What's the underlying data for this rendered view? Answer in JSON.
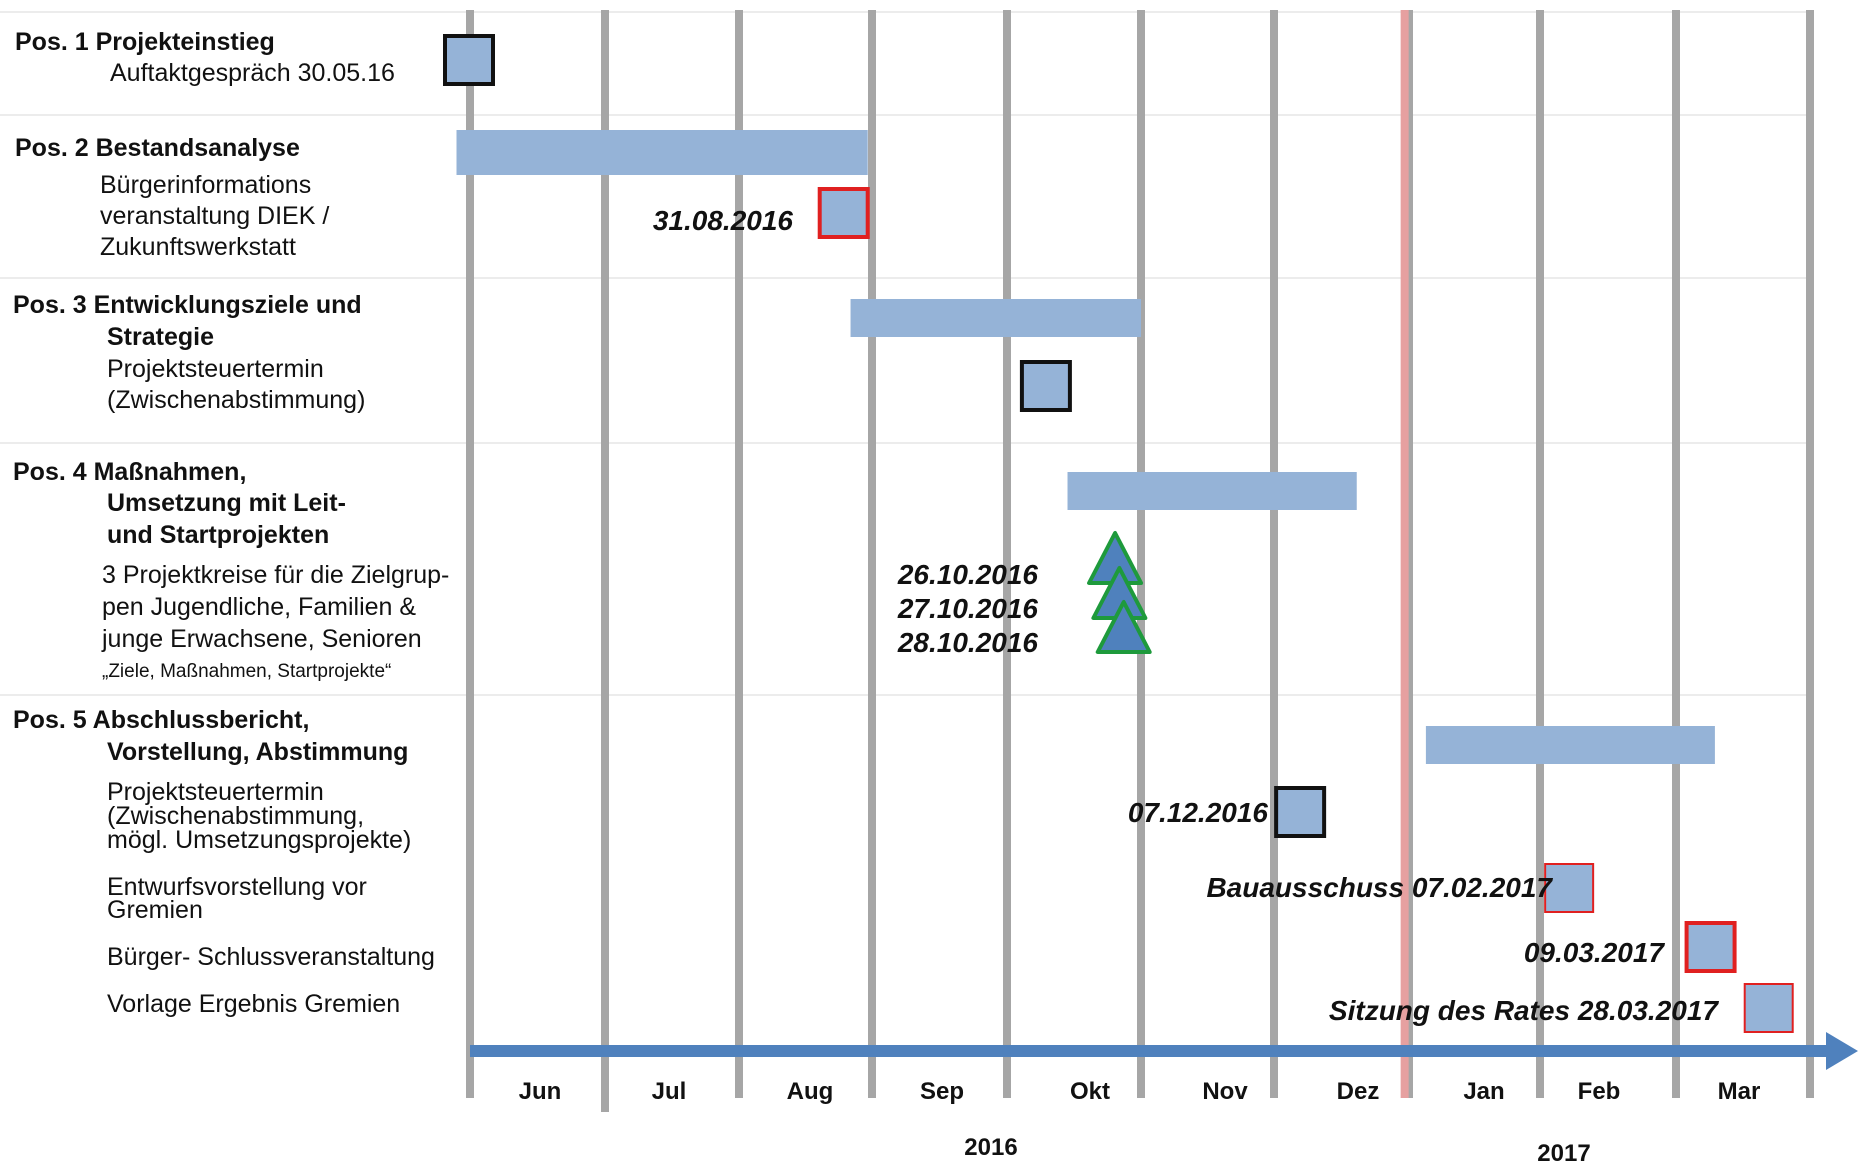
{
  "rows": [
    {
      "title": "Pos. 1 Projekteinstieg",
      "title_lines": [
        "Pos. 1 Projekteinstieg"
      ],
      "sub_lines": [
        "Auftaktgespräch 30.05.16"
      ]
    },
    {
      "title_lines": [
        "Pos. 2 Bestandsanalyse"
      ],
      "sub_lines": [
        "Bürgerinformations",
        "veranstaltung DIEK /",
        "Zukunftswerkstatt"
      ]
    },
    {
      "title_lines": [
        "Pos. 3  Entwicklungsziele und",
        "Strategie"
      ],
      "sub_lines": [
        "Projektsteuertermin",
        "(Zwischenabstimmung)"
      ]
    },
    {
      "title_lines": [
        "Pos. 4  Maßnahmen,",
        "Umsetzung mit Leit-",
        "und Startprojekten"
      ],
      "sub_lines": [
        "3 Projektkreise für die Zielgrup-",
        "pen Jugendliche, Familien &",
        "junge Erwachsene, Senioren"
      ],
      "note": "„Ziele, Maßnahmen, Startprojekte“"
    },
    {
      "title_lines": [
        "Pos. 5  Abschlussbericht,",
        "Vorstellung, Abstimmung"
      ],
      "items": [
        [
          "Projektsteuertermin",
          "(Zwischenabstimmung,",
          "mögl. Umsetzungsprojekte)"
        ],
        [
          "Entwurfsvorstellung vor",
          "Gremien"
        ],
        [
          "Bürger- Schlussveranstaltung"
        ],
        [
          "Vorlage Ergebnis Gremien"
        ]
      ]
    }
  ],
  "months": [
    "Jun",
    "Jul",
    "Aug",
    "Sep",
    "Okt",
    "Nov",
    "Dez",
    "Jan",
    "Feb",
    "Mar"
  ],
  "years": [
    "2016",
    "2017"
  ],
  "dates": {
    "d1": "31.08.2016",
    "d2": "26.10.2016",
    "d3": "27.10.2016",
    "d4": "28.10.2016",
    "d5": "07.12.2016",
    "d6": "Bauausschuss  07.02.2017",
    "d7": "09.03.2017",
    "d8": "Sitzung des Rates  28.03.2017"
  },
  "chart_data": {
    "type": "gantt",
    "timeline_start": "2016-05-29",
    "bars": [
      {
        "row": 2,
        "start": "2016-05-29",
        "end": "2016-08-31"
      },
      {
        "row": 3,
        "start": "2016-08-27",
        "end": "2016-11-01"
      },
      {
        "row": 4,
        "start": "2016-10-15",
        "end": "2016-12-20"
      },
      {
        "row": 5,
        "start": "2017-01-05",
        "end": "2017-03-10"
      }
    ],
    "milestones": [
      {
        "row": 1,
        "date": "2016-05-30",
        "shape": "square",
        "border": "black"
      },
      {
        "row": 2,
        "date": "2016-08-31",
        "shape": "square",
        "border": "red"
      },
      {
        "row": 3,
        "date": "2016-10-10",
        "shape": "square",
        "border": "black"
      },
      {
        "row": 4,
        "date": "2016-10-26",
        "shape": "triangle",
        "border": "green"
      },
      {
        "row": 4,
        "date": "2016-10-27",
        "shape": "triangle",
        "border": "green"
      },
      {
        "row": 4,
        "date": "2016-10-28",
        "shape": "triangle",
        "border": "green"
      },
      {
        "row": 5,
        "date": "2016-12-07",
        "shape": "square",
        "border": "black"
      },
      {
        "row": 5,
        "date": "2017-02-07",
        "shape": "square",
        "border": "red-thin"
      },
      {
        "row": 5,
        "date": "2017-03-09",
        "shape": "square",
        "border": "red"
      },
      {
        "row": 5,
        "date": "2017-03-28",
        "shape": "square",
        "border": "red-thin"
      }
    ],
    "today_marker": "2016-12-31",
    "colors": {
      "bar": "#95b3d7",
      "gridline": "#a6a6a6",
      "today": "#e6a0a0",
      "axis": "#4f81bd",
      "triangle": "#4f81bd",
      "triangle_border": "#1e9a3c",
      "red": "#e02020"
    }
  }
}
